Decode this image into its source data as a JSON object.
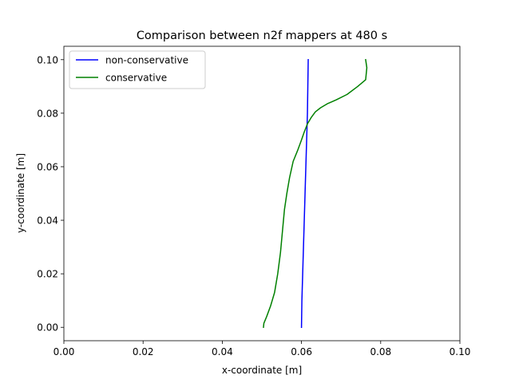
{
  "chart_data": {
    "type": "line",
    "title": "Comparison between n2f mappers at 480 s",
    "xlabel": "x-coordinate [m]",
    "ylabel": "y-coordinate [m]",
    "xlim": [
      0.0,
      0.1
    ],
    "ylim": [
      -0.005,
      0.105
    ],
    "xticks": [
      "0.00",
      "0.02",
      "0.04",
      "0.06",
      "0.08",
      "0.10"
    ],
    "yticks": [
      "0.00",
      "0.02",
      "0.04",
      "0.06",
      "0.08",
      "0.10"
    ],
    "grid": false,
    "legend_position": "top-left",
    "series": [
      {
        "name": "non-conservative",
        "color": "#0000ff",
        "x": [
          0.06,
          0.0601,
          0.0603,
          0.0605,
          0.0607,
          0.0609,
          0.0611,
          0.0613,
          0.0615,
          0.0616,
          0.0617
        ],
        "y": [
          0.0,
          0.01,
          0.02,
          0.03,
          0.04,
          0.05,
          0.06,
          0.07,
          0.08,
          0.09,
          0.1
        ]
      },
      {
        "name": "conservative",
        "color": "#008000",
        "x": [
          0.0504,
          0.0505,
          0.0512,
          0.0522,
          0.0532,
          0.054,
          0.0547,
          0.0552,
          0.0557,
          0.0563,
          0.057,
          0.0579,
          0.059,
          0.06,
          0.0607,
          0.0615,
          0.0625,
          0.0635,
          0.0648,
          0.0665,
          0.0688,
          0.0715,
          0.0742,
          0.0762,
          0.0765,
          0.0762
        ],
        "y": [
          0.0,
          0.0015,
          0.004,
          0.008,
          0.013,
          0.02,
          0.028,
          0.036,
          0.044,
          0.05,
          0.056,
          0.062,
          0.066,
          0.07,
          0.073,
          0.076,
          0.0785,
          0.0805,
          0.082,
          0.0835,
          0.085,
          0.087,
          0.09,
          0.0925,
          0.097,
          0.1
        ]
      }
    ]
  }
}
